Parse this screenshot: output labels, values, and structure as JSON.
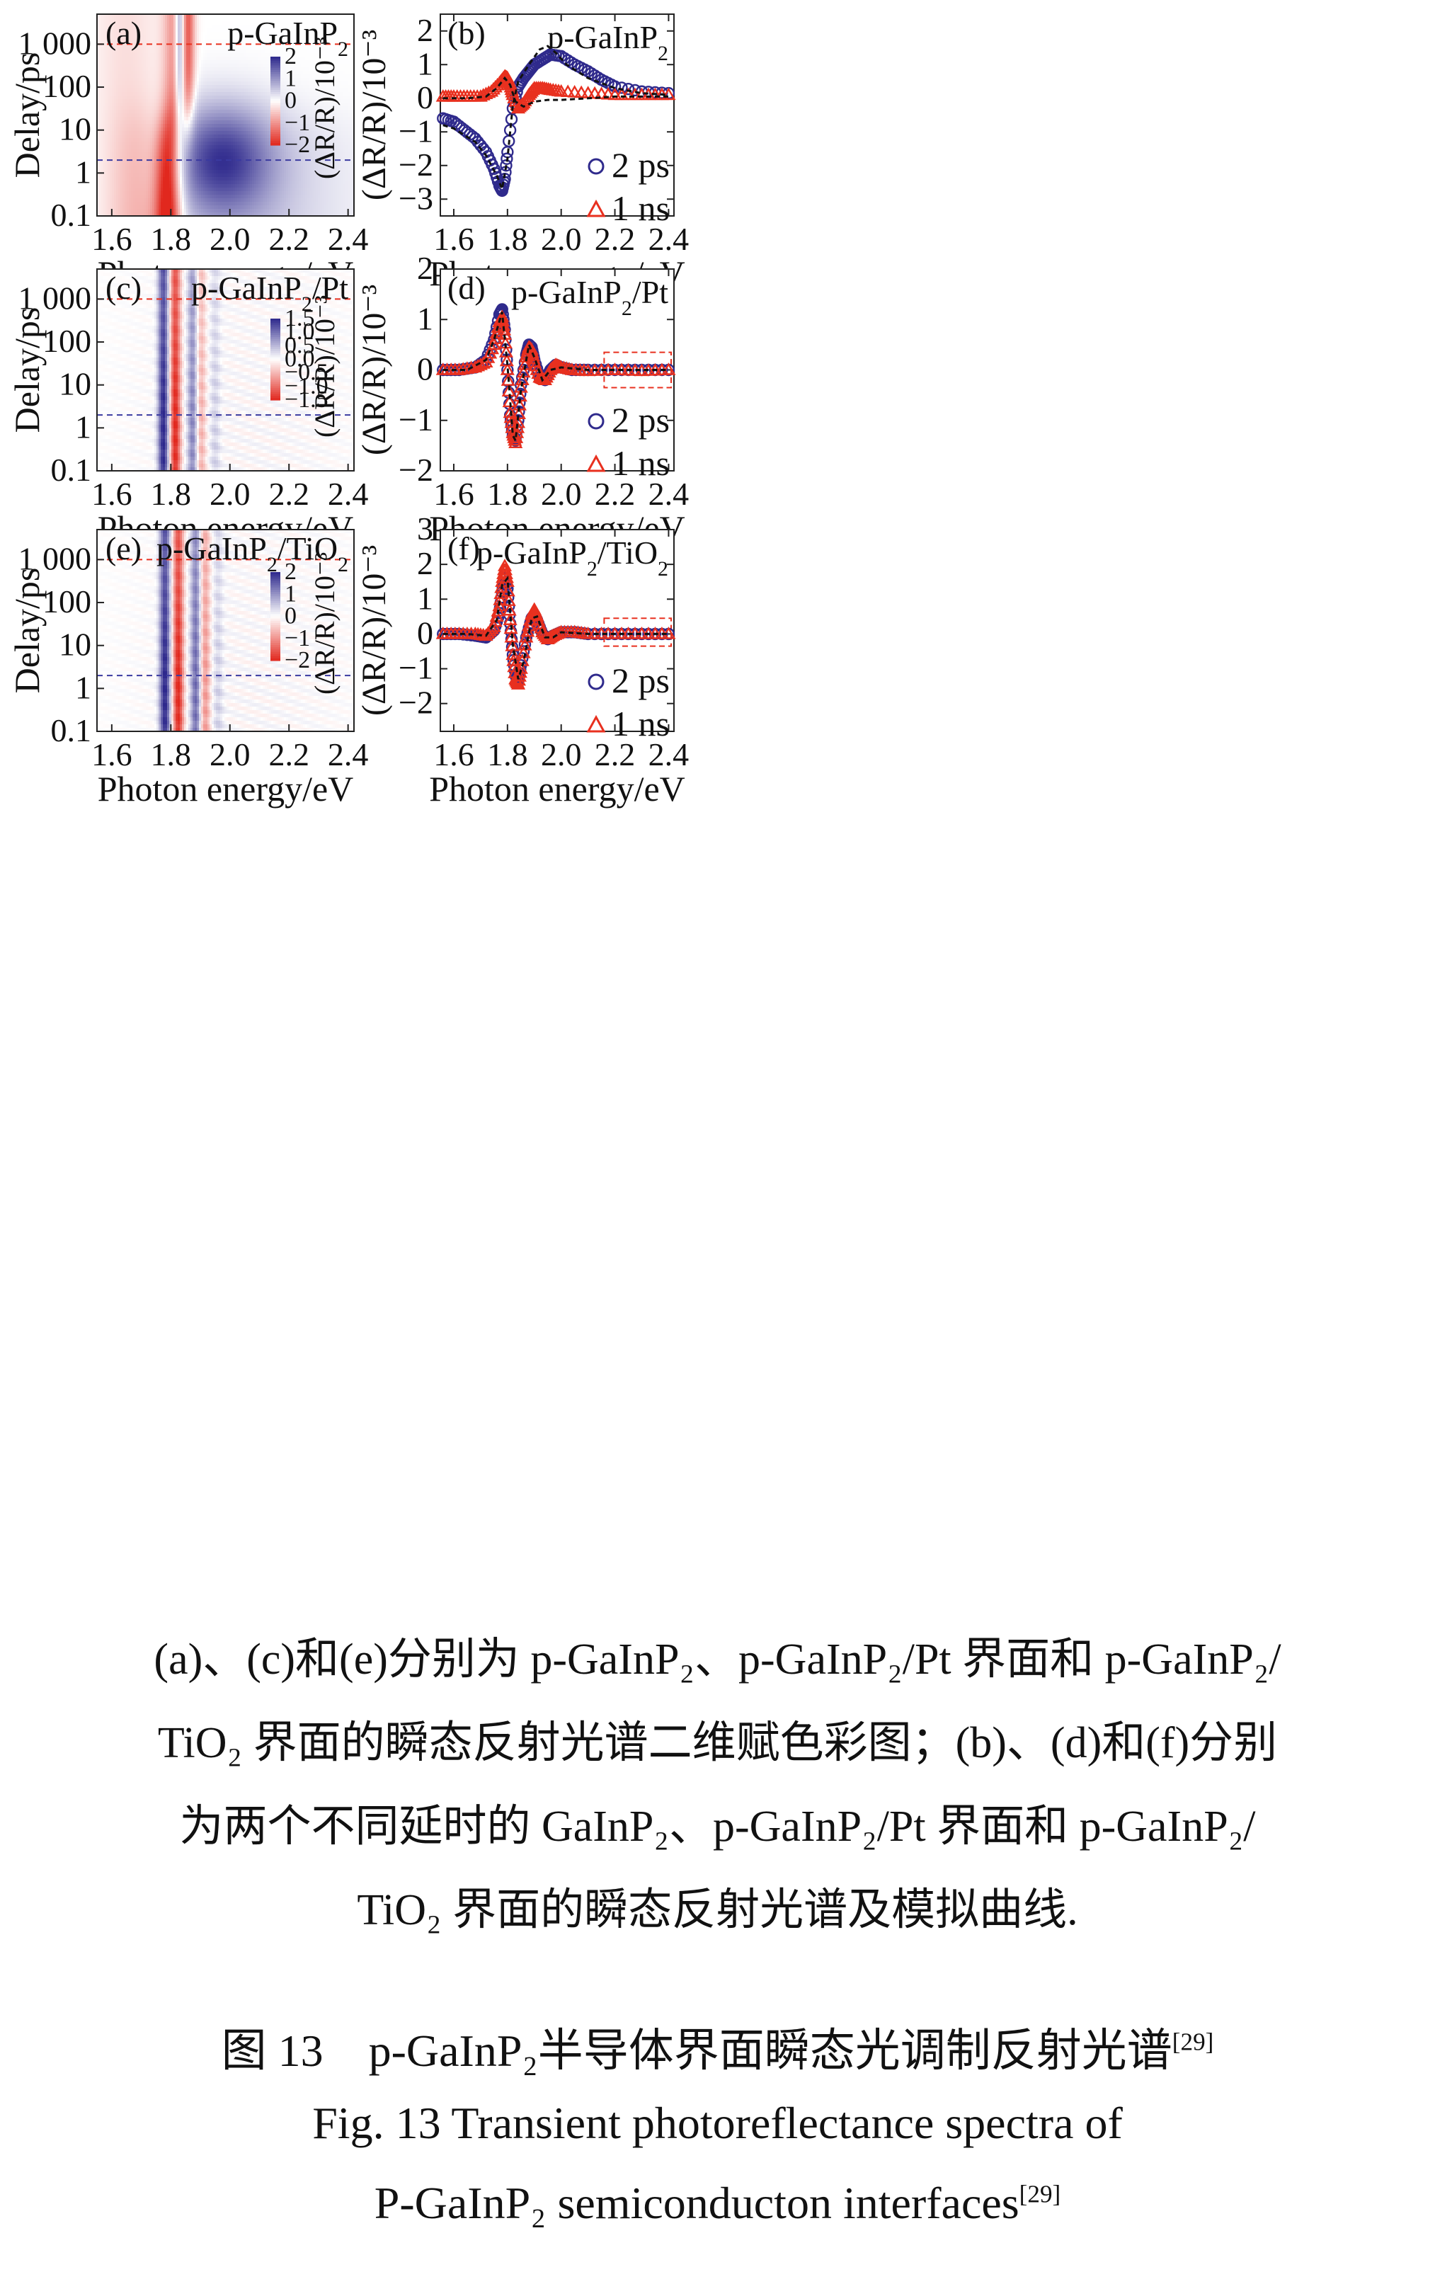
{
  "colors": {
    "red": "#e8301f",
    "blue": "#2f2a8c",
    "fit": "#111111",
    "red_dashed": "#e8301f",
    "blue_dashed": "#3a3aa0"
  },
  "maps": [
    {
      "panel": "(a)",
      "label": "p-GaInP",
      "label_sub": "2",
      "label_suffix": "",
      "ylabel": "Delay/ps",
      "xlabel": "Photon energy/eV",
      "x_ticks": [
        "1.6",
        "1.8",
        "2.0",
        "2.2",
        "2.4"
      ],
      "y_ticks": [
        "1 000",
        "100",
        "10",
        "1",
        "0.1"
      ],
      "colorbar_ticks": [
        "2",
        "1",
        "0",
        "−1",
        "−2"
      ],
      "colorbar_label": "(ΔR/R)/10⁻³"
    },
    {
      "panel": "(c)",
      "label": "p-GaInP",
      "label_sub": "2",
      "label_suffix": "/Pt",
      "ylabel": "Delay/ps",
      "xlabel": "Photon energy/eV",
      "x_ticks": [
        "1.6",
        "1.8",
        "2.0",
        "2.2",
        "2.4"
      ],
      "y_ticks": [
        "1 000",
        "100",
        "10",
        "1",
        "0.1"
      ],
      "colorbar_ticks": [
        "1.5",
        "1.0",
        "0.5",
        "0.0",
        "−0.5",
        "−1.0",
        "−1.5"
      ],
      "colorbar_label": "(ΔR/R)/10⁻³"
    },
    {
      "panel": "(e)",
      "label": "p-GaInP",
      "label_sub": "2",
      "label_suffix": "/TiO₂",
      "ylabel": "Delay/ps",
      "xlabel": "Photon energy/eV",
      "x_ticks": [
        "1.6",
        "1.8",
        "2.0",
        "2.2",
        "2.4"
      ],
      "y_ticks": [
        "1 000",
        "100",
        "10",
        "1",
        "0.1"
      ],
      "colorbar_ticks": [
        "2",
        "1",
        "0",
        "−1",
        "−2"
      ],
      "colorbar_label": "(ΔR/R)/10⁻³"
    }
  ],
  "legend": {
    "series_a": "2 ps",
    "series_b": "1 ns"
  },
  "chart_data": [
    {
      "type": "heatmap",
      "panel": "(a)",
      "title": "p-GaInP2",
      "xlabel": "Photon energy/eV",
      "ylabel": "Delay/ps",
      "xlim": [
        1.55,
        2.42
      ],
      "ylim": [
        0.1,
        5000
      ],
      "yscale": "log",
      "colorbar_range": [
        -2.2,
        2.2
      ],
      "features": [
        {
          "x": 1.8,
          "value": -2.0,
          "description": "red band at 1.8 eV, strongest at short delay"
        },
        {
          "x": 1.97,
          "value": 1.5,
          "description": "blue region near 1.95 eV at delay ~2 ps"
        },
        {
          "x": 1.82,
          "value": 1.8,
          "description": "blue band at 1.82 eV at long delay"
        }
      ],
      "cut_lines_ps": [
        1000,
        2
      ]
    },
    {
      "type": "heatmap",
      "panel": "(c)",
      "title": "p-GaInP2/Pt",
      "xlabel": "Photon energy/eV",
      "ylabel": "Delay/ps",
      "xlim": [
        1.55,
        2.42
      ],
      "ylim": [
        0.1,
        5000
      ],
      "yscale": "log",
      "colorbar_range": [
        -1.5,
        1.5
      ],
      "bands_eV": [
        1.775,
        1.815,
        1.875,
        1.9,
        1.95
      ],
      "band_sign": [
        1,
        -1,
        0.6,
        -0.4,
        0.2
      ],
      "cut_lines_ps": [
        1000,
        2
      ]
    },
    {
      "type": "heatmap",
      "panel": "(e)",
      "title": "p-GaInP2/TiO2",
      "xlabel": "Photon energy/eV",
      "ylabel": "Delay/ps",
      "xlim": [
        1.55,
        2.42
      ],
      "ylim": [
        0.1,
        5000
      ],
      "yscale": "log",
      "colorbar_range": [
        -2.2,
        2.2
      ],
      "bands_eV": [
        1.78,
        1.825,
        1.885,
        1.915,
        1.96
      ],
      "band_sign": [
        1,
        -1,
        0.7,
        -0.5,
        0.2
      ],
      "cut_lines_ps": [
        1000,
        2
      ]
    },
    {
      "type": "scatter",
      "panel": "(b)",
      "title": "p-GaInP2",
      "xlabel": "Photon energy/eV",
      "ylabel": "(ΔR/R)/10⁻³",
      "xlim": [
        1.55,
        2.42
      ],
      "ylim": [
        -3.5,
        2.5
      ],
      "x_ticks": [
        1.6,
        1.8,
        2.0,
        2.2,
        2.4
      ],
      "y_ticks": [
        -3,
        -2,
        -1,
        0,
        1,
        2
      ],
      "series": [
        {
          "name": "2 ps",
          "marker": "circle",
          "x": [
            1.56,
            1.6,
            1.64,
            1.68,
            1.72,
            1.75,
            1.77,
            1.78,
            1.79,
            1.8,
            1.82,
            1.84,
            1.86,
            1.88,
            1.9,
            1.93,
            1.96,
            2.0,
            2.05,
            2.1,
            2.15,
            2.2,
            2.3,
            2.4
          ],
          "y": [
            -0.6,
            -0.7,
            -0.95,
            -1.2,
            -1.6,
            -2.1,
            -2.6,
            -2.75,
            -2.4,
            -1.6,
            -0.3,
            0.35,
            0.6,
            0.8,
            1.0,
            1.15,
            1.3,
            1.25,
            1.0,
            0.8,
            0.55,
            0.35,
            0.2,
            0.15
          ]
        },
        {
          "name": "1 ns",
          "marker": "triangle",
          "x": [
            1.56,
            1.6,
            1.65,
            1.7,
            1.74,
            1.77,
            1.79,
            1.8,
            1.81,
            1.82,
            1.84,
            1.86,
            1.88,
            1.9,
            1.93,
            1.96,
            2.0,
            2.1,
            2.2,
            2.3,
            2.4
          ],
          "y": [
            0.05,
            0.05,
            0.05,
            0.05,
            0.2,
            0.45,
            0.65,
            0.6,
            0.4,
            0.1,
            -0.3,
            -0.15,
            0.1,
            0.3,
            0.3,
            0.25,
            0.2,
            0.15,
            0.1,
            0.1,
            0.1
          ]
        },
        {
          "name": "fit-2ps",
          "line": "dashed",
          "x": [
            1.56,
            1.6,
            1.64,
            1.68,
            1.72,
            1.76,
            1.78,
            1.8,
            1.82,
            1.84,
            1.88,
            1.92,
            1.95,
            1.98,
            2.02,
            2.1,
            2.2,
            2.3,
            2.4
          ],
          "y": [
            -0.8,
            -0.9,
            -1.1,
            -1.3,
            -1.7,
            -2.3,
            -2.7,
            -1.8,
            -0.2,
            0.5,
            1.0,
            1.45,
            1.55,
            1.35,
            1.0,
            0.6,
            0.3,
            0.15,
            0.1
          ]
        },
        {
          "name": "fit-1ns",
          "line": "dashed",
          "x": [
            1.56,
            1.65,
            1.72,
            1.76,
            1.79,
            1.81,
            1.83,
            1.86,
            1.9,
            1.95,
            2.0,
            2.1,
            2.2,
            2.4
          ],
          "y": [
            0.0,
            0.0,
            0.05,
            0.3,
            0.6,
            0.4,
            -0.1,
            -0.25,
            -0.1,
            -0.05,
            -0.05,
            0.0,
            0.05,
            0.05
          ]
        }
      ]
    },
    {
      "type": "scatter",
      "panel": "(d)",
      "title": "p-GaInP2/Pt",
      "xlabel": "Photon energy/eV",
      "ylabel": "(ΔR/R)/10⁻³",
      "xlim": [
        1.55,
        2.42
      ],
      "ylim": [
        -2.0,
        2.0
      ],
      "x_ticks": [
        1.6,
        1.8,
        2.0,
        2.2,
        2.4
      ],
      "y_ticks": [
        -2,
        -1,
        0,
        1,
        2
      ],
      "series": [
        {
          "name": "2 ps",
          "marker": "circle",
          "x": [
            1.56,
            1.62,
            1.68,
            1.72,
            1.75,
            1.77,
            1.78,
            1.79,
            1.8,
            1.81,
            1.82,
            1.83,
            1.84,
            1.85,
            1.87,
            1.88,
            1.89,
            1.9,
            1.92,
            1.94,
            1.96,
            1.98,
            2.0,
            2.04,
            2.1,
            2.2,
            2.3,
            2.4
          ],
          "y": [
            0.0,
            0.0,
            0.05,
            0.2,
            0.6,
            1.1,
            1.2,
            0.8,
            0.0,
            -0.9,
            -1.3,
            -1.4,
            -1.0,
            -0.3,
            0.3,
            0.5,
            0.45,
            0.2,
            -0.15,
            -0.2,
            0.0,
            0.1,
            0.05,
            0.0,
            0.0,
            0.0,
            0.0,
            0.0
          ]
        },
        {
          "name": "1 ns",
          "marker": "triangle",
          "x": [
            1.56,
            1.62,
            1.68,
            1.72,
            1.75,
            1.77,
            1.78,
            1.79,
            1.8,
            1.81,
            1.82,
            1.83,
            1.84,
            1.85,
            1.87,
            1.88,
            1.89,
            1.9,
            1.92,
            1.94,
            1.96,
            1.98,
            2.0,
            2.04,
            2.1,
            2.2,
            2.3,
            2.4
          ],
          "y": [
            0.0,
            0.0,
            0.05,
            0.15,
            0.5,
            0.95,
            1.05,
            0.7,
            0.0,
            -0.85,
            -1.25,
            -1.45,
            -1.05,
            -0.35,
            0.25,
            0.45,
            0.4,
            0.15,
            -0.15,
            -0.2,
            0.0,
            0.1,
            0.05,
            0.0,
            -0.02,
            0.0,
            -0.02,
            0.0
          ]
        },
        {
          "name": "fit",
          "line": "dashed",
          "x": [
            1.56,
            1.65,
            1.72,
            1.75,
            1.78,
            1.8,
            1.82,
            1.83,
            1.85,
            1.88,
            1.9,
            1.93,
            1.96,
            2.0,
            2.1,
            2.4
          ],
          "y": [
            0.0,
            0.0,
            0.2,
            0.6,
            1.15,
            0.1,
            -1.3,
            -1.4,
            -0.4,
            0.5,
            0.25,
            -0.2,
            0.0,
            0.05,
            0.0,
            0.0
          ]
        }
      ]
    },
    {
      "type": "scatter",
      "panel": "(f)",
      "title": "p-GaInP2/TiO2",
      "xlabel": "Photon energy/eV",
      "ylabel": "(ΔR/R)/10⁻³",
      "xlim": [
        1.55,
        2.42
      ],
      "ylim": [
        -2.8,
        3.0
      ],
      "x_ticks": [
        1.6,
        1.8,
        2.0,
        2.2,
        2.4
      ],
      "y_ticks": [
        -2,
        -1,
        0,
        1,
        2,
        3
      ],
      "series": [
        {
          "name": "2 ps",
          "marker": "circle",
          "x": [
            1.56,
            1.62,
            1.68,
            1.72,
            1.75,
            1.77,
            1.78,
            1.79,
            1.8,
            1.81,
            1.82,
            1.83,
            1.84,
            1.85,
            1.87,
            1.89,
            1.9,
            1.91,
            1.93,
            1.95,
            1.97,
            2.0,
            2.05,
            2.1,
            2.2,
            2.3,
            2.4
          ],
          "y": [
            0.0,
            0.0,
            -0.05,
            -0.1,
            0.1,
            0.6,
            1.2,
            1.7,
            1.3,
            0.3,
            -0.6,
            -1.2,
            -1.35,
            -0.9,
            -0.1,
            0.45,
            0.55,
            0.4,
            0.0,
            -0.15,
            -0.05,
            0.05,
            0.05,
            0.0,
            0.0,
            0.0,
            0.0
          ]
        },
        {
          "name": "1 ns",
          "marker": "triangle",
          "x": [
            1.56,
            1.62,
            1.68,
            1.72,
            1.75,
            1.77,
            1.78,
            1.79,
            1.8,
            1.81,
            1.82,
            1.83,
            1.84,
            1.85,
            1.87,
            1.89,
            1.9,
            1.91,
            1.93,
            1.95,
            1.97,
            2.0,
            2.05,
            2.1,
            2.2,
            2.3,
            2.4
          ],
          "y": [
            0.0,
            0.0,
            0.0,
            -0.05,
            0.2,
            0.8,
            1.5,
            1.95,
            1.5,
            0.4,
            -0.6,
            -1.3,
            -1.45,
            -1.0,
            -0.1,
            0.55,
            0.7,
            0.5,
            0.05,
            -0.15,
            -0.05,
            0.05,
            0.05,
            0.0,
            0.0,
            0.0,
            0.0
          ]
        },
        {
          "name": "fit",
          "line": "dashed",
          "x": [
            1.56,
            1.65,
            1.72,
            1.76,
            1.78,
            1.8,
            1.82,
            1.84,
            1.86,
            1.89,
            1.91,
            1.94,
            1.97,
            2.0,
            2.1,
            2.4
          ],
          "y": [
            0.0,
            0.0,
            -0.05,
            0.4,
            1.4,
            1.6,
            -0.3,
            -1.3,
            -0.8,
            0.45,
            0.5,
            -0.1,
            -0.1,
            0.05,
            0.0,
            0.0
          ]
        }
      ]
    }
  ],
  "caption": {
    "line1": "(a)、(c)和(e)分别为 p-GaInP₂、p-GaInP₂/Pt 界面和 p-GaInP₂/",
    "line2": "TiO₂ 界面的瞬态反射光谱二维赋色彩图；(b)、(d)和(f)分别",
    "line3": "为两个不同延时的 GaInP₂、p-GaInP₂/Pt 界面和 p-GaInP₂/",
    "line4": "TiO₂ 界面的瞬态反射光谱及模拟曲线."
  },
  "figure_label": {
    "zh": "图 13　p-GaInP₂半导体界面瞬态光调制反射光谱",
    "zh_ref": "[29]",
    "en1": "Fig. 13  Transient photoreflectance spectra of",
    "en2": "P-GaInP₂ semiconducton interfaces",
    "en_ref": "[29]"
  }
}
